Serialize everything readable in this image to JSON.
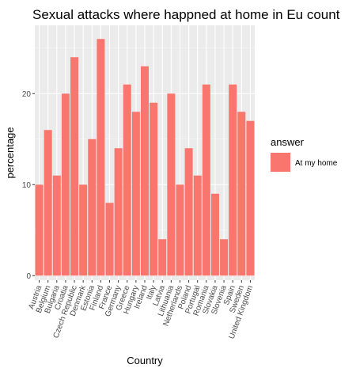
{
  "chart_data": {
    "type": "bar",
    "title": "Sexual attacks where happned  at home in Eu count",
    "xlabel": "Country",
    "ylabel": "percentage",
    "categories": [
      "Austria",
      "Belgium",
      "Bulgaria",
      "Croatia",
      "Czech Republic",
      "Denmark",
      "Estonia",
      "Finland",
      "France",
      "Germany",
      "Greece",
      "Hungary",
      "Ireland",
      "Italy",
      "Latvia",
      "Lithuania",
      "Netherlands",
      "Poland",
      "Portugal",
      "Romania",
      "Slovakia",
      "Slovenia",
      "Spain",
      "Sweden",
      "United Kingdom"
    ],
    "series": [
      {
        "name": "At my home",
        "values": [
          10,
          16,
          11,
          20,
          24,
          10,
          15,
          26,
          8,
          14,
          21,
          18,
          23,
          19,
          4,
          20,
          10,
          14,
          11,
          21,
          9,
          4,
          21,
          18,
          17
        ]
      }
    ],
    "yticks": [
      0,
      10,
      20
    ],
    "ylim": [
      -0.5,
      27.5
    ],
    "grid": true,
    "legend": {
      "title": "answer",
      "placement": "right"
    },
    "colors": {
      "bar": "#F8766D",
      "panel": "#EBEBEB",
      "grid_major": "#FFFFFF"
    }
  }
}
